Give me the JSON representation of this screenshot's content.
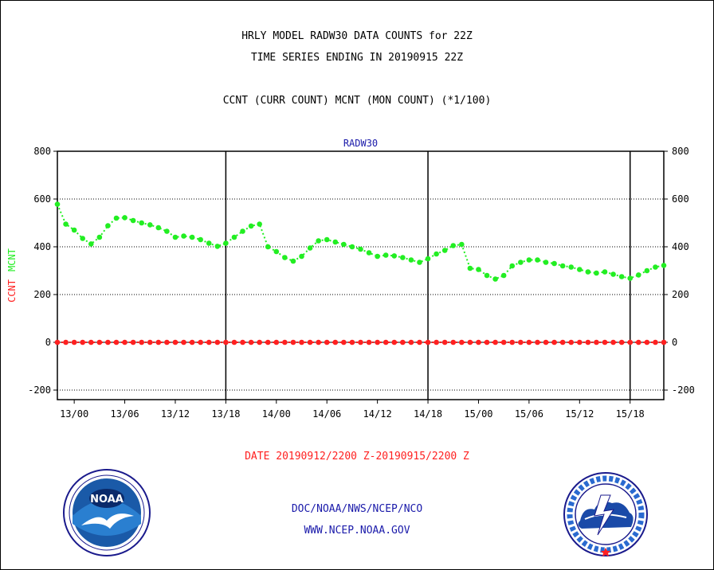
{
  "titles": {
    "line1": "HRLY MODEL RADW30 DATA COUNTS for 22Z",
    "line2": "TIME SERIES ENDING IN 20190915 22Z",
    "line3": "CCNT (CURR COUNT) MCNT (MON COUNT) (*1/100)"
  },
  "footer": {
    "date_range": "DATE 20190912/2200 Z-20190915/2200 Z",
    "org": "DOC/NOAA/NWS/NCEP/NCO",
    "url": "WWW.NCEP.NOAA.GOV"
  },
  "colors": {
    "ccnt": "#ff2020",
    "mcnt": "#22ee22",
    "plot_label": "#1a1aaa",
    "footer_red": "#ff2020",
    "footer_blue": "#1a1aaa"
  },
  "logos": {
    "left": "noaa-logo",
    "right": "national-weather-service-logo"
  },
  "chart_data": {
    "type": "line",
    "title": "RADW30",
    "ylabel_ccnt": "CCNT",
    "ylabel_mcnt": "MCNT",
    "ylim": [
      -240,
      800
    ],
    "yticks": [
      -200,
      0,
      200,
      400,
      600,
      800
    ],
    "ytick_labels": [
      "-200",
      "0",
      "200",
      "400",
      "600",
      "800"
    ],
    "x_start_hour": 0,
    "x_end_hour": 72,
    "x_ticks": [
      {
        "hour": 2,
        "label": "13/00"
      },
      {
        "hour": 8,
        "label": "13/06"
      },
      {
        "hour": 14,
        "label": "13/12"
      },
      {
        "hour": 20,
        "label": "13/18"
      },
      {
        "hour": 26,
        "label": "14/00"
      },
      {
        "hour": 32,
        "label": "14/06"
      },
      {
        "hour": 38,
        "label": "14/12"
      },
      {
        "hour": 44,
        "label": "14/18"
      },
      {
        "hour": 50,
        "label": "15/00"
      },
      {
        "hour": 56,
        "label": "15/06"
      },
      {
        "hour": 62,
        "label": "15/12"
      },
      {
        "hour": 68,
        "label": "15/18"
      }
    ],
    "vertical_lines_at_hours": [
      20,
      44,
      68
    ],
    "horizontal_dotted_grid_at": [
      -200,
      200,
      400,
      600
    ],
    "series": [
      {
        "name": "CCNT",
        "values": [
          0,
          0,
          0,
          0,
          0,
          0,
          0,
          0,
          0,
          0,
          0,
          0,
          0,
          0,
          0,
          0,
          0,
          0,
          0,
          0,
          0,
          0,
          0,
          0,
          0,
          0,
          0,
          0,
          0,
          0,
          0,
          0,
          0,
          0,
          0,
          0,
          0,
          0,
          0,
          0,
          0,
          0,
          0,
          0,
          0,
          0,
          0,
          0,
          0,
          0,
          0,
          0,
          0,
          0,
          0,
          0,
          0,
          0,
          0,
          0,
          0,
          0,
          0,
          0,
          0,
          0,
          0,
          0,
          0,
          0,
          0,
          0,
          0
        ]
      },
      {
        "name": "MCNT",
        "values": [
          578,
          495,
          470,
          435,
          412,
          440,
          488,
          520,
          522,
          510,
          500,
          492,
          480,
          465,
          440,
          445,
          440,
          430,
          415,
          402,
          415,
          440,
          465,
          487,
          495,
          400,
          380,
          355,
          340,
          360,
          395,
          425,
          430,
          420,
          410,
          400,
          390,
          375,
          360,
          365,
          362,
          355,
          345,
          335,
          350,
          370,
          385,
          405,
          410,
          310,
          305,
          280,
          265,
          280,
          320,
          335,
          345,
          345,
          335,
          330,
          320,
          315,
          305,
          295,
          290,
          295,
          285,
          275,
          268,
          282,
          300,
          315,
          322
        ]
      }
    ]
  }
}
